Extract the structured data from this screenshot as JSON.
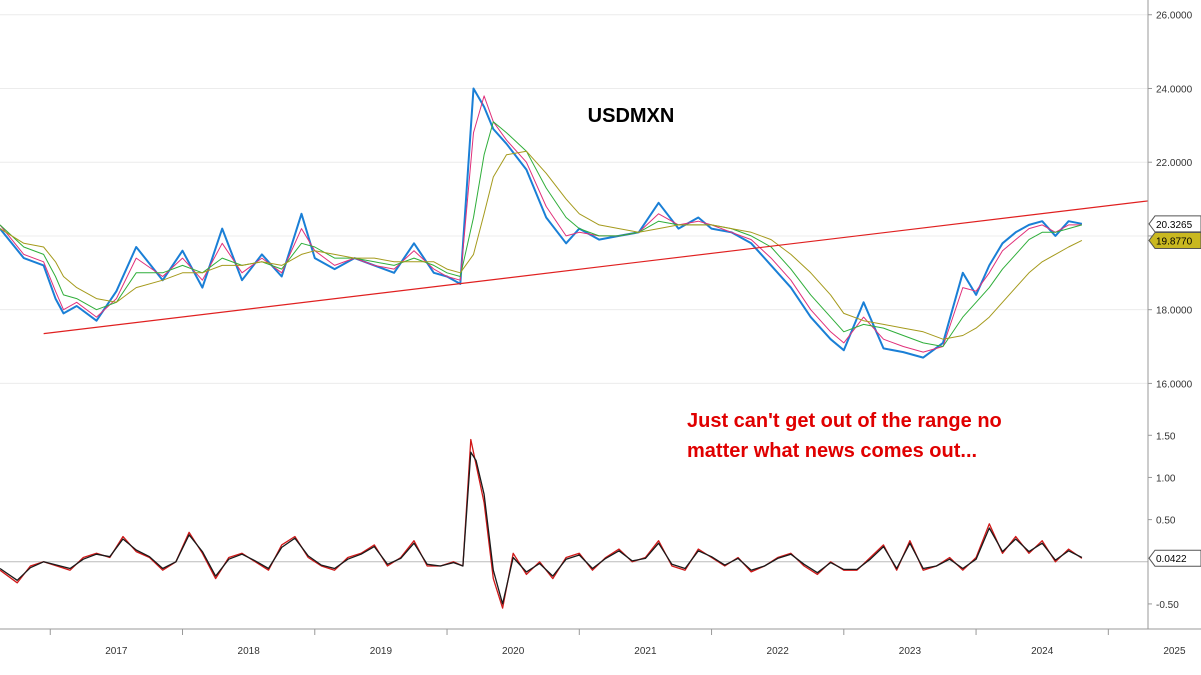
{
  "chart_data": [
    {
      "type": "line",
      "title": "USDMXN",
      "annotation": [
        "Just can't get out of the range no",
        "matter what news comes out..."
      ],
      "x_ticks": [
        "2017",
        "2018",
        "2019",
        "2020",
        "2021",
        "2022",
        "2023",
        "2024",
        "2025"
      ],
      "xlim": [
        2016.62,
        2025.3
      ],
      "y_ticks": [
        "16.0000",
        "18.0000",
        "20.0000",
        "22.0000",
        "24.0000",
        "26.0000"
      ],
      "ylim": [
        15.55,
        26.4
      ],
      "grid": true,
      "x": [
        2016.62,
        2016.8,
        2016.95,
        2017.04,
        2017.1,
        2017.2,
        2017.35,
        2017.5,
        2017.65,
        2017.85,
        2018.0,
        2018.15,
        2018.3,
        2018.45,
        2018.6,
        2018.75,
        2018.9,
        2019.0,
        2019.15,
        2019.3,
        2019.45,
        2019.6,
        2019.75,
        2019.9,
        2020.0,
        2020.1,
        2020.2,
        2020.28,
        2020.35,
        2020.45,
        2020.6,
        2020.75,
        2020.9,
        2021.0,
        2021.15,
        2021.3,
        2021.45,
        2021.6,
        2021.75,
        2021.9,
        2022.0,
        2022.15,
        2022.3,
        2022.45,
        2022.6,
        2022.75,
        2022.9,
        2023.0,
        2023.15,
        2023.3,
        2023.45,
        2023.6,
        2023.75,
        2023.9,
        2024.0,
        2024.1,
        2024.2,
        2024.3,
        2024.4,
        2024.5,
        2024.6,
        2024.7,
        2024.8
      ],
      "series": [
        {
          "color": "#1a7fd6",
          "values": [
            20.2,
            19.4,
            19.2,
            18.3,
            17.9,
            18.1,
            17.7,
            18.5,
            19.7,
            18.8,
            19.6,
            18.6,
            20.2,
            18.8,
            19.5,
            18.9,
            20.6,
            19.4,
            19.1,
            19.4,
            19.2,
            19.0,
            19.8,
            19.0,
            18.9,
            18.7,
            24.0,
            23.5,
            22.9,
            22.5,
            21.8,
            20.5,
            19.8,
            20.2,
            19.9,
            20.0,
            20.1,
            20.9,
            20.2,
            20.5,
            20.2,
            20.1,
            19.8,
            19.2,
            18.6,
            17.8,
            17.2,
            16.9,
            18.2,
            16.95,
            16.85,
            16.7,
            17.1,
            19.0,
            18.4,
            19.2,
            19.8,
            20.1,
            20.3,
            20.4,
            20.0,
            20.4,
            20.33
          ]
        },
        {
          "color": "#e0307a",
          "values": [
            20.3,
            19.5,
            19.3,
            18.5,
            18.0,
            18.2,
            17.8,
            18.3,
            19.4,
            18.9,
            19.4,
            18.8,
            19.8,
            19.0,
            19.4,
            19.0,
            20.2,
            19.6,
            19.2,
            19.4,
            19.2,
            19.1,
            19.6,
            19.1,
            18.9,
            18.8,
            22.8,
            23.8,
            23.1,
            22.6,
            22.0,
            20.8,
            20.0,
            20.1,
            20.0,
            20.0,
            20.1,
            20.6,
            20.3,
            20.4,
            20.3,
            20.1,
            19.9,
            19.4,
            18.8,
            18.0,
            17.4,
            17.1,
            17.8,
            17.2,
            17.0,
            16.85,
            17.0,
            18.6,
            18.5,
            19.0,
            19.6,
            19.9,
            20.2,
            20.3,
            20.1,
            20.3,
            20.3
          ]
        },
        {
          "color": "#2fae3a",
          "values": [
            20.3,
            19.7,
            19.5,
            18.9,
            18.4,
            18.3,
            18.0,
            18.2,
            19.0,
            19.0,
            19.2,
            19.0,
            19.4,
            19.2,
            19.3,
            19.1,
            19.8,
            19.7,
            19.4,
            19.4,
            19.3,
            19.2,
            19.4,
            19.2,
            19.0,
            18.9,
            20.5,
            22.2,
            23.1,
            22.8,
            22.3,
            21.3,
            20.5,
            20.2,
            20.0,
            20.0,
            20.1,
            20.4,
            20.3,
            20.3,
            20.3,
            20.2,
            20.0,
            19.7,
            19.1,
            18.4,
            17.8,
            17.4,
            17.6,
            17.5,
            17.3,
            17.1,
            17.0,
            17.8,
            18.2,
            18.6,
            19.1,
            19.5,
            19.9,
            20.1,
            20.1,
            20.2,
            20.3
          ]
        },
        {
          "color": "#a59a1c",
          "values": [
            20.2,
            19.8,
            19.7,
            19.3,
            18.9,
            18.6,
            18.3,
            18.2,
            18.6,
            18.8,
            19.0,
            19.0,
            19.2,
            19.2,
            19.3,
            19.2,
            19.5,
            19.6,
            19.5,
            19.4,
            19.4,
            19.3,
            19.3,
            19.3,
            19.1,
            19.0,
            19.5,
            20.6,
            21.6,
            22.2,
            22.3,
            21.7,
            21.0,
            20.6,
            20.3,
            20.2,
            20.1,
            20.2,
            20.3,
            20.3,
            20.3,
            20.2,
            20.1,
            19.9,
            19.5,
            19.0,
            18.4,
            17.9,
            17.7,
            17.6,
            17.5,
            17.4,
            17.2,
            17.3,
            17.5,
            17.8,
            18.2,
            18.6,
            19.0,
            19.3,
            19.5,
            19.7,
            19.88
          ]
        }
      ],
      "trendline": {
        "color": "#e02020",
        "from": [
          2016.95,
          17.35
        ],
        "to": [
          2025.3,
          20.95
        ]
      },
      "last_value_tags": [
        {
          "label": "20.3265",
          "value": 20.3265,
          "fill": "#ffffff",
          "text_color": "#000000"
        },
        {
          "label": "19.8770",
          "value": 19.877,
          "fill": "#c9b820",
          "text_color": "#000000"
        }
      ]
    },
    {
      "type": "line",
      "y_ticks": [
        "-0.50",
        "0.50",
        "1.00",
        "1.50"
      ],
      "ylim": [
        -0.75,
        1.8
      ],
      "zero_line": 0,
      "x": [
        2016.62,
        2016.75,
        2016.85,
        2016.95,
        2017.05,
        2017.15,
        2017.25,
        2017.35,
        2017.45,
        2017.55,
        2017.65,
        2017.75,
        2017.85,
        2017.95,
        2018.05,
        2018.15,
        2018.25,
        2018.35,
        2018.45,
        2018.55,
        2018.65,
        2018.75,
        2018.85,
        2018.95,
        2019.05,
        2019.15,
        2019.25,
        2019.35,
        2019.45,
        2019.55,
        2019.65,
        2019.75,
        2019.85,
        2019.95,
        2020.05,
        2020.12,
        2020.18,
        2020.22,
        2020.28,
        2020.35,
        2020.42,
        2020.5,
        2020.6,
        2020.7,
        2020.8,
        2020.9,
        2021.0,
        2021.1,
        2021.2,
        2021.3,
        2021.4,
        2021.5,
        2021.6,
        2021.7,
        2021.8,
        2021.9,
        2022.0,
        2022.1,
        2022.2,
        2022.3,
        2022.4,
        2022.5,
        2022.6,
        2022.7,
        2022.8,
        2022.9,
        2023.0,
        2023.1,
        2023.2,
        2023.3,
        2023.4,
        2023.5,
        2023.6,
        2023.7,
        2023.8,
        2023.9,
        2024.0,
        2024.1,
        2024.2,
        2024.3,
        2024.4,
        2024.5,
        2024.6,
        2024.7,
        2024.8
      ],
      "series": [
        {
          "color": "#d01818",
          "values": [
            -0.1,
            -0.25,
            -0.05,
            0.0,
            -0.05,
            -0.1,
            0.05,
            0.1,
            0.05,
            0.3,
            0.12,
            0.05,
            -0.1,
            0.0,
            0.35,
            0.1,
            -0.2,
            0.05,
            0.1,
            0.0,
            -0.1,
            0.2,
            0.3,
            0.05,
            -0.05,
            -0.1,
            0.05,
            0.1,
            0.2,
            -0.05,
            0.05,
            0.25,
            -0.05,
            -0.05,
            0.0,
            -0.05,
            1.45,
            1.15,
            0.7,
            -0.2,
            -0.55,
            0.1,
            -0.15,
            0.0,
            -0.2,
            0.05,
            0.1,
            -0.1,
            0.05,
            0.15,
            0.0,
            0.05,
            0.25,
            -0.05,
            -0.1,
            0.15,
            0.05,
            -0.05,
            0.05,
            -0.12,
            -0.05,
            0.05,
            0.1,
            -0.05,
            -0.15,
            0.0,
            -0.1,
            -0.1,
            0.05,
            0.2,
            -0.1,
            0.25,
            -0.1,
            -0.05,
            0.05,
            -0.1,
            0.05,
            0.45,
            0.1,
            0.3,
            0.1,
            0.25,
            0.0,
            0.15,
            0.04
          ]
        },
        {
          "color": "#1a1a1a",
          "values": [
            -0.08,
            -0.22,
            -0.07,
            0.0,
            -0.04,
            -0.08,
            0.03,
            0.09,
            0.06,
            0.27,
            0.14,
            0.06,
            -0.08,
            0.0,
            0.32,
            0.12,
            -0.17,
            0.03,
            0.09,
            0.01,
            -0.08,
            0.17,
            0.28,
            0.07,
            -0.04,
            -0.08,
            0.03,
            0.09,
            0.18,
            -0.03,
            0.04,
            0.22,
            -0.03,
            -0.05,
            -0.01,
            -0.05,
            1.3,
            1.2,
            0.8,
            -0.1,
            -0.5,
            0.05,
            -0.12,
            -0.02,
            -0.17,
            0.03,
            0.08,
            -0.08,
            0.04,
            0.13,
            0.01,
            0.04,
            0.22,
            -0.03,
            -0.08,
            0.13,
            0.06,
            -0.04,
            0.04,
            -0.1,
            -0.05,
            0.04,
            0.09,
            -0.03,
            -0.13,
            -0.01,
            -0.09,
            -0.09,
            0.03,
            0.18,
            -0.08,
            0.22,
            -0.08,
            -0.05,
            0.03,
            -0.08,
            0.03,
            0.4,
            0.12,
            0.27,
            0.12,
            0.22,
            0.02,
            0.13,
            0.05
          ]
        }
      ],
      "last_value_tag": {
        "label": "0.0422",
        "value": 0.0422,
        "fill": "#ffffff",
        "text_color": "#000000"
      }
    }
  ]
}
